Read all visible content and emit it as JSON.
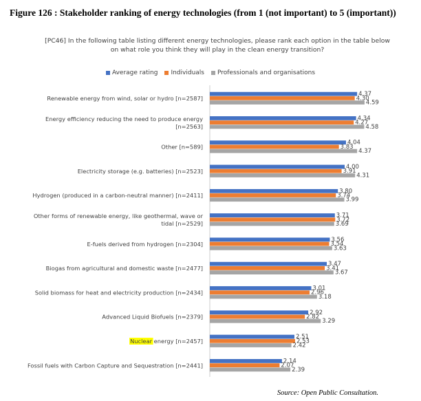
{
  "figure_title": "Figure 126 : Stakeholder ranking of energy technologies (from 1 (not important) to 5 (important))",
  "source_note": "Source: Open Public Consultation.",
  "chart_data": {
    "type": "bar",
    "orientation": "horizontal",
    "title": "[PC46] In the following table listing different energy technologies, please rank each option in the table below on what role you think they will play in the clean energy transition?",
    "xlim": [
      0,
      5
    ],
    "highlight_term": "Nuclear",
    "categories": [
      "Renewable energy from wind, solar or hydro [n=2587]",
      "Energy efficiency reducing the need to produce energy [n=2563]",
      "Other [n=589]",
      "Electricity storage (e.g. batteries) [n=2523]",
      "Hydrogen (produced in a carbon-neutral manner) [n=2411]",
      "Other forms of renewable energy, like geothermal, wave or tidal [n=2529]",
      "E-fuels derived from hydrogen [n=2304]",
      "Biogas from agricultural and domestic waste [n=2477]",
      "Solid biomass for heat and electricity production [n=2434]",
      "Advanced Liquid Biofuels [n=2379]",
      "Nuclear energy [n=2457]",
      "Fossil fuels with Carbon Capture and Sequestration [n=2441]"
    ],
    "category_lines": [
      [
        "Renewable energy from wind, solar or hydro [n=2587]"
      ],
      [
        "Energy efficiency reducing the need to produce energy",
        "[n=2563]"
      ],
      [
        "Other [n=589]"
      ],
      [
        "Electricity storage (e.g. batteries) [n=2523]"
      ],
      [
        "Hydrogen (produced in a carbon-neutral manner) [n=2411]"
      ],
      [
        "Other forms of renewable energy, like geothermal, wave or",
        "tidal [n=2529]"
      ],
      [
        "E-fuels derived from hydrogen [n=2304]"
      ],
      [
        "Biogas from agricultural and domestic waste [n=2477]"
      ],
      [
        "Solid biomass for heat and electricity production [n=2434]"
      ],
      [
        "Advanced Liquid Biofuels [n=2379]"
      ],
      [
        "Nuclear energy [n=2457]"
      ],
      [
        "Fossil fuels with Carbon Capture and Sequestration [n=2441]"
      ]
    ],
    "series": [
      {
        "name": "Average rating",
        "color": "#4472C4",
        "values": [
          4.37,
          4.34,
          4.04,
          4.0,
          3.8,
          3.71,
          3.56,
          3.47,
          3.01,
          2.92,
          2.51,
          2.14
        ]
      },
      {
        "name": "Individuals",
        "color": "#ED7D31",
        "values": [
          4.3,
          4.27,
          3.83,
          3.91,
          3.74,
          3.72,
          3.54,
          3.41,
          2.96,
          2.82,
          2.53,
          2.07
        ]
      },
      {
        "name": "Professionals and organisations",
        "color": "#A5A5A5",
        "values": [
          4.59,
          4.58,
          4.37,
          4.31,
          3.99,
          3.69,
          3.63,
          3.67,
          3.18,
          3.29,
          2.42,
          2.39
        ]
      }
    ]
  }
}
